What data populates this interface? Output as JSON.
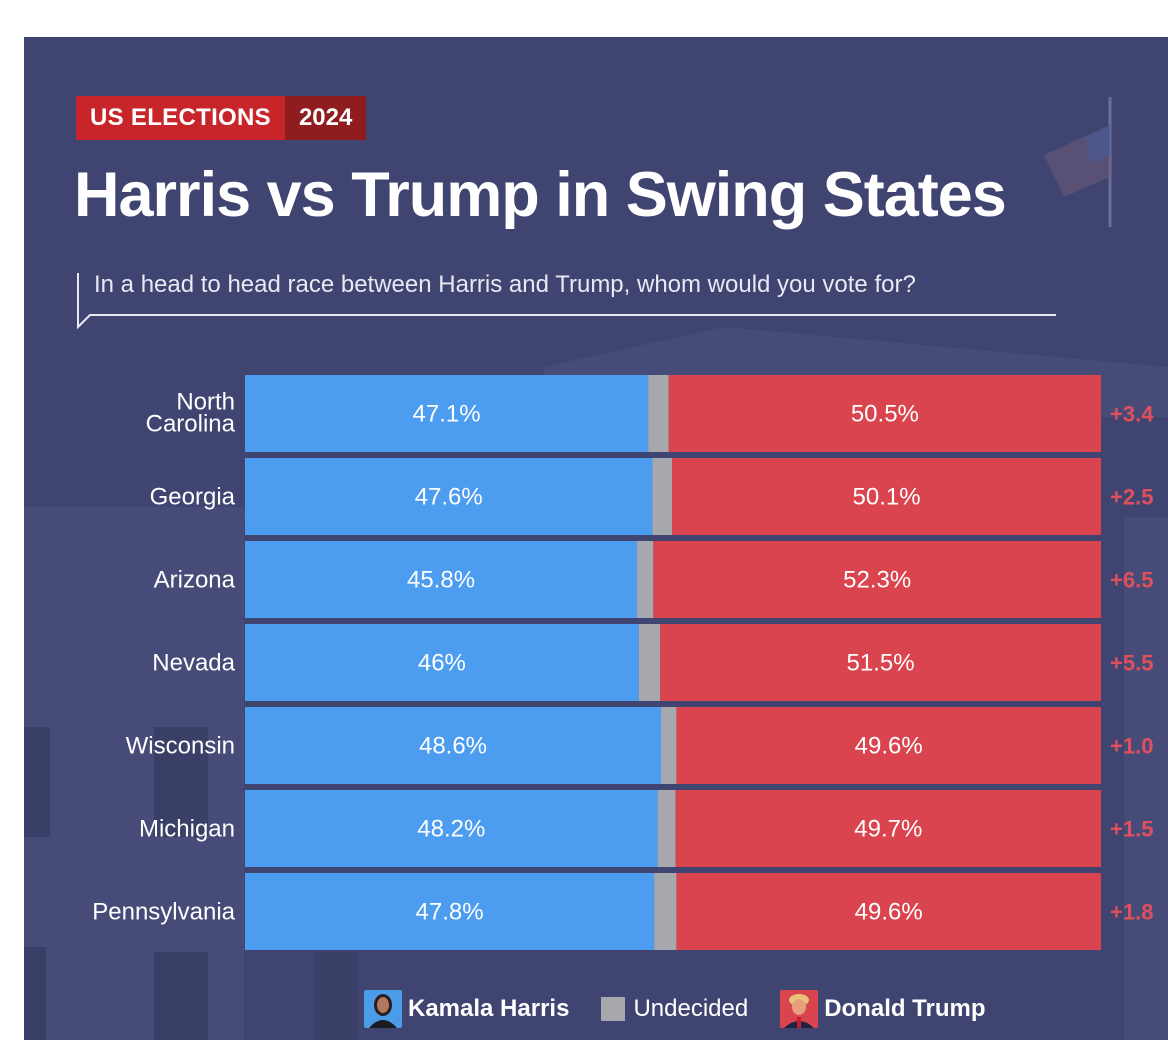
{
  "header": {
    "badge_left": "US ELECTIONS",
    "badge_right": "2024",
    "title": "Harris vs Trump in Swing States",
    "subtitle": "In a head to head race between Harris and Trump, whom would you vote for?"
  },
  "colors": {
    "background": "#3f4470",
    "harris": "#4c9df0",
    "undecided": "#a7a8ad",
    "trump": "#d9444f",
    "margin_text": "#e0505c",
    "badge_red": "#c8252b",
    "badge_dark": "#8f1c1e"
  },
  "chart_data": {
    "type": "bar",
    "orientation": "horizontal",
    "stacked": true,
    "categories": [
      "North Carolina",
      "Georgia",
      "Arizona",
      "Nevada",
      "Wisconsin",
      "Michigan",
      "Pennsylvania"
    ],
    "series": [
      {
        "name": "Kamala Harris",
        "values": [
          47.1,
          47.6,
          45.8,
          46,
          48.6,
          48.2,
          47.8
        ]
      },
      {
        "name": "Undecided",
        "values": [
          2.4,
          2.3,
          1.9,
          2.5,
          1.8,
          2.1,
          2.6
        ]
      },
      {
        "name": "Donald Trump",
        "values": [
          50.5,
          50.1,
          52.3,
          51.5,
          49.6,
          49.7,
          49.6
        ]
      }
    ],
    "harris_labels": [
      "47.1%",
      "47.6%",
      "45.8%",
      "46%",
      "48.6%",
      "48.2%",
      "47.8%"
    ],
    "trump_labels": [
      "50.5%",
      "50.1%",
      "52.3%",
      "51.5%",
      "49.6%",
      "49.7%",
      "49.6%"
    ],
    "margins": [
      "+3.4",
      "+2.5",
      "+6.5",
      "+5.5",
      "+1.0",
      "+1.5",
      "+1.8"
    ],
    "xlim": [
      0,
      100
    ]
  },
  "legend": {
    "harris": "Kamala Harris",
    "undecided": "Undecided",
    "trump": "Donald Trump",
    "harris_icon": "kamala-harris-portrait-icon",
    "trump_icon": "donald-trump-portrait-icon"
  }
}
